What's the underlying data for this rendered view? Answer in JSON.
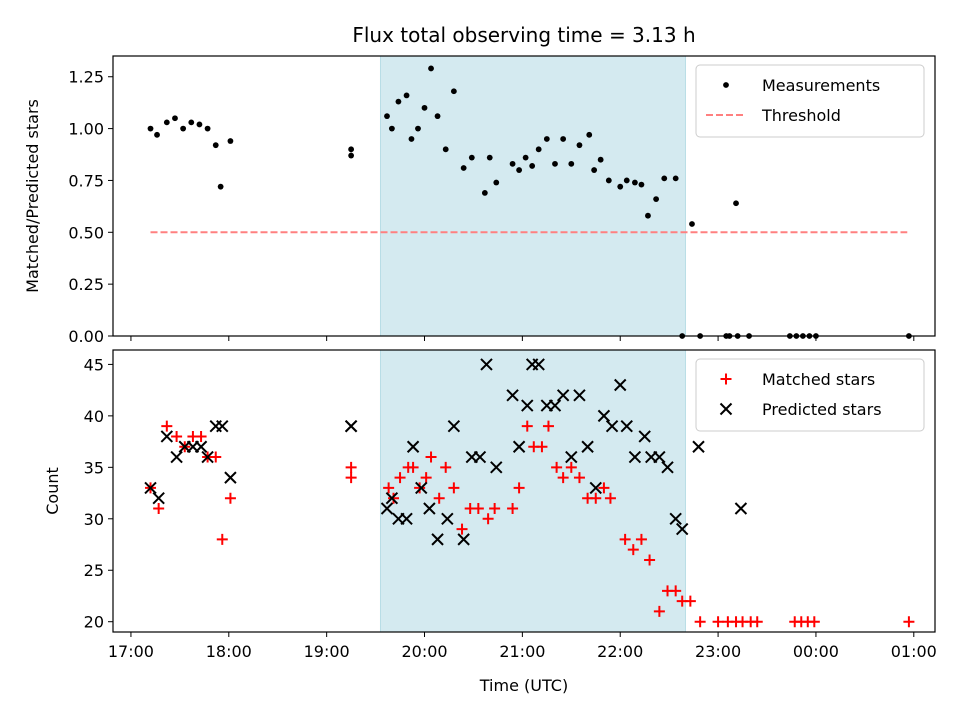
{
  "chart_data": {
    "type": "scatter",
    "title": "Flux total observing time = 3.13 h",
    "xlabel": "Time (UTC)",
    "x_unit": "hours UTC from 17:00 on the observing night (values above 24 wrap past midnight)",
    "xlim": [
      "16:49",
      "01:13"
    ],
    "x_ticks": [
      {
        "value": "17:00",
        "label": "17:00"
      },
      {
        "value": "18:00",
        "label": "18:00"
      },
      {
        "value": "19:00",
        "label": "19:00"
      },
      {
        "value": "20:00",
        "label": "20:00"
      },
      {
        "value": "21:00",
        "label": "21:00"
      },
      {
        "value": "22:00",
        "label": "22:00"
      },
      {
        "value": "23:00",
        "label": "23:00"
      },
      {
        "value": "00:00",
        "label": "00:00"
      },
      {
        "value": "01:00",
        "label": "01:00"
      }
    ],
    "shaded_interval": [
      "19:33",
      "22:40"
    ],
    "shade_color": "#d4eaf0",
    "panels": [
      {
        "ylabel": "Matched/Predicted stars",
        "ylim": [
          0,
          1.35
        ],
        "y_ticks": [
          "0.00",
          "0.25",
          "0.50",
          "0.75",
          "1.00",
          "1.25"
        ],
        "legend": {
          "position": "upper right",
          "entries": [
            "Measurements",
            "Threshold"
          ]
        },
        "threshold": {
          "name": "Threshold",
          "y": 0.5,
          "x_start": "17:12",
          "x_end": "00:56",
          "color": "#ff8080",
          "style": "dashed"
        },
        "series": [
          {
            "name": "Measurements",
            "marker": "dot",
            "color": "#000000",
            "x": [
              "17:12",
              "17:16",
              "17:22",
              "17:27",
              "17:32",
              "17:37",
              "17:42",
              "17:47",
              "17:52",
              "17:55",
              "18:01",
              "19:15",
              "19:15",
              "19:37",
              "19:40",
              "19:44",
              "19:49",
              "19:52",
              "19:56",
              "20:00",
              "20:04",
              "20:08",
              "20:13",
              "20:18",
              "20:24",
              "20:29",
              "20:37",
              "20:40",
              "20:44",
              "20:54",
              "20:58",
              "21:02",
              "21:06",
              "21:10",
              "21:15",
              "21:20",
              "21:25",
              "21:30",
              "21:35",
              "21:41",
              "21:44",
              "21:48",
              "21:53",
              "22:00",
              "22:04",
              "22:09",
              "22:13",
              "22:17",
              "22:22",
              "22:27",
              "22:34",
              "22:38",
              "22:44",
              "22:49",
              "23:05",
              "23:07",
              "23:11",
              "23:12",
              "23:19",
              "23:44",
              "23:48",
              "23:52",
              "23:56",
              "00:00",
              "00:57"
            ],
            "y": [
              1.0,
              0.97,
              1.03,
              1.05,
              1.0,
              1.03,
              1.02,
              1.0,
              0.92,
              0.72,
              0.94,
              0.9,
              0.87,
              1.06,
              1.0,
              1.13,
              1.16,
              0.95,
              1.0,
              1.1,
              1.29,
              1.06,
              0.9,
              1.18,
              0.81,
              0.86,
              0.69,
              0.86,
              0.74,
              0.83,
              0.8,
              0.86,
              0.82,
              0.9,
              0.95,
              0.83,
              0.95,
              0.83,
              0.92,
              0.97,
              0.8,
              0.85,
              0.75,
              0.72,
              0.75,
              0.74,
              0.73,
              0.58,
              0.66,
              0.76,
              0.76,
              0.0,
              0.54,
              0.0,
              0.0,
              0.0,
              0.64,
              0.0,
              0.0,
              0.0,
              0.0,
              0.0,
              0.0,
              0.0,
              0.0
            ]
          }
        ]
      },
      {
        "ylabel": "Count",
        "ylim": [
          19,
          46.4
        ],
        "y_ticks": [
          "20",
          "25",
          "30",
          "35",
          "40",
          "45"
        ],
        "legend": {
          "position": "upper right",
          "entries": [
            "Matched stars",
            "Predicted stars"
          ]
        },
        "series": [
          {
            "name": "Matched stars",
            "marker": "plus",
            "color": "#ff0000",
            "x": [
              "17:12",
              "17:17",
              "17:22",
              "17:28",
              "17:33",
              "17:38",
              "17:43",
              "17:47",
              "17:52",
              "17:56",
              "18:01",
              "19:15",
              "19:15",
              "19:38",
              "19:41",
              "19:45",
              "19:50",
              "19:53",
              "19:57",
              "20:01",
              "20:04",
              "20:09",
              "20:13",
              "20:18",
              "20:23",
              "20:28",
              "20:33",
              "20:39",
              "20:43",
              "20:54",
              "20:58",
              "21:03",
              "21:07",
              "21:12",
              "21:16",
              "21:21",
              "21:25",
              "21:30",
              "21:35",
              "21:40",
              "21:45",
              "21:50",
              "21:54",
              "22:03",
              "22:08",
              "22:13",
              "22:18",
              "22:24",
              "22:29",
              "22:34",
              "22:38",
              "22:43",
              "22:49",
              "23:00",
              "23:06",
              "23:11",
              "23:15",
              "23:20",
              "23:24",
              "23:47",
              "23:51",
              "23:55",
              "23:59",
              "00:57"
            ],
            "y": [
              33,
              31,
              39,
              38,
              37,
              38,
              38,
              36,
              36,
              28,
              32,
              35,
              34,
              33,
              32,
              34,
              35,
              35,
              33,
              34,
              36,
              32,
              35,
              33,
              29,
              31,
              31,
              30,
              31,
              31,
              33,
              39,
              37,
              37,
              39,
              35,
              34,
              35,
              34,
              32,
              32,
              33,
              32,
              28,
              27,
              28,
              26,
              21,
              23,
              23,
              22,
              22,
              20,
              20,
              20,
              20,
              20,
              20,
              20,
              20,
              20,
              20,
              20,
              20
            ]
          },
          {
            "name": "Predicted stars",
            "marker": "x",
            "color": "#000000",
            "x": [
              "17:12",
              "17:17",
              "17:22",
              "17:28",
              "17:33",
              "17:38",
              "17:43",
              "17:47",
              "17:52",
              "17:56",
              "18:01",
              "19:15",
              "19:15",
              "19:37",
              "19:40",
              "19:44",
              "19:49",
              "19:53",
              "19:58",
              "20:03",
              "20:08",
              "20:14",
              "20:18",
              "20:24",
              "20:29",
              "20:34",
              "20:38",
              "20:44",
              "20:54",
              "20:58",
              "21:03",
              "21:06",
              "21:10",
              "21:15",
              "21:20",
              "21:25",
              "21:30",
              "21:35",
              "21:40",
              "21:45",
              "21:50",
              "21:55",
              "22:00",
              "22:04",
              "22:09",
              "22:15",
              "22:19",
              "22:24",
              "22:29",
              "22:34",
              "22:38",
              "22:48",
              "23:14"
            ],
            "y": [
              33,
              32,
              38,
              36,
              37,
              37,
              37,
              36,
              39,
              39,
              34,
              39,
              39,
              31,
              32,
              30,
              30,
              37,
              33,
              31,
              28,
              30,
              39,
              28,
              36,
              36,
              45,
              35,
              42,
              37,
              41,
              45,
              45,
              41,
              41,
              42,
              36,
              42,
              37,
              33,
              40,
              39,
              43,
              39,
              36,
              38,
              36,
              36,
              35,
              30,
              29,
              37,
              31
            ]
          }
        ]
      }
    ]
  }
}
